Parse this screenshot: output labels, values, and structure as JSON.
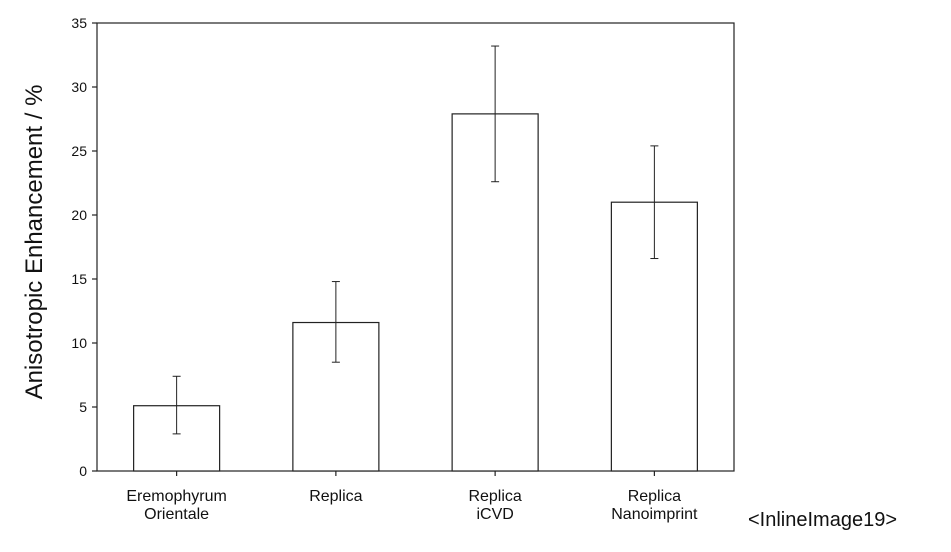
{
  "caption": "<InlineImage19>",
  "chart_data": {
    "type": "bar",
    "categories": [
      [
        "Eremophyrum",
        "Orientale"
      ],
      [
        "Replica"
      ],
      [
        "Replica",
        "iCVD"
      ],
      [
        "Replica",
        "Nanoimprint"
      ]
    ],
    "values": [
      5.1,
      11.6,
      27.9,
      21.0
    ],
    "error_low": [
      2.9,
      8.5,
      22.6,
      16.6
    ],
    "error_high": [
      7.4,
      14.8,
      33.2,
      25.4
    ],
    "xlabel": "",
    "ylabel": "Anisotropic Enhancement / %",
    "ylim": [
      0,
      35
    ],
    "yticks": [
      0,
      5,
      10,
      15,
      20,
      25,
      30,
      35
    ],
    "grid": false,
    "colors": {
      "bar_fill": "#ffffff",
      "bar_stroke": "#222222",
      "axis": "#222222"
    }
  }
}
